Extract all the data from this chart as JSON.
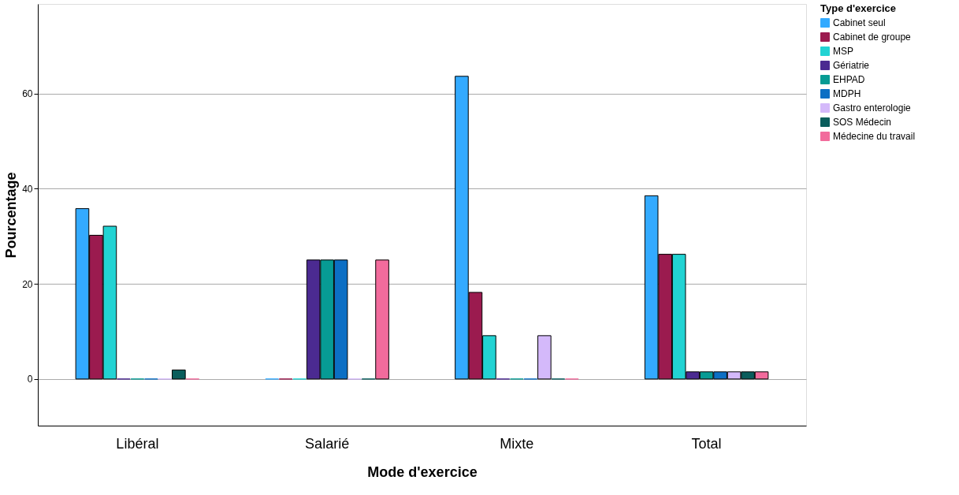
{
  "chart_data": {
    "type": "bar",
    "xlabel": "Mode d'exercice",
    "ylabel": "Pourcentage",
    "legend_title": "Type d'exercice",
    "categories": [
      "Libéral",
      "Salarié",
      "Mixte",
      "Total"
    ],
    "series": [
      {
        "name": "Cabinet seul",
        "color": "#33aaff",
        "values": [
          35.8,
          0,
          63.6,
          38.5
        ]
      },
      {
        "name": "Cabinet de groupe",
        "color": "#9b1b4f",
        "values": [
          30.2,
          0,
          18.2,
          26.2
        ]
      },
      {
        "name": "MSP",
        "color": "#22d3d3",
        "values": [
          32.1,
          0,
          9.1,
          26.2
        ]
      },
      {
        "name": "Gériatrie",
        "color": "#4b2a91",
        "values": [
          0,
          25,
          0,
          1.5
        ]
      },
      {
        "name": "EHPAD",
        "color": "#079b94",
        "values": [
          0,
          25,
          0,
          1.5
        ]
      },
      {
        "name": "MDPH",
        "color": "#0c6fc4",
        "values": [
          0,
          25,
          0,
          1.5
        ]
      },
      {
        "name": "Gastro enterologie",
        "color": "#d4b9fa",
        "values": [
          0,
          0,
          9.1,
          1.5
        ]
      },
      {
        "name": "SOS Médecin",
        "color": "#0a5d5c",
        "values": [
          1.9,
          0,
          0,
          1.5
        ]
      },
      {
        "name": "Médecine du travail",
        "color": "#f26b9c",
        "values": [
          0,
          25,
          0,
          1.5
        ]
      }
    ],
    "ylim": [
      -9.8,
      78.8
    ],
    "yticks": [
      0,
      20,
      40,
      60
    ],
    "grid": "y",
    "legend": "top right"
  }
}
